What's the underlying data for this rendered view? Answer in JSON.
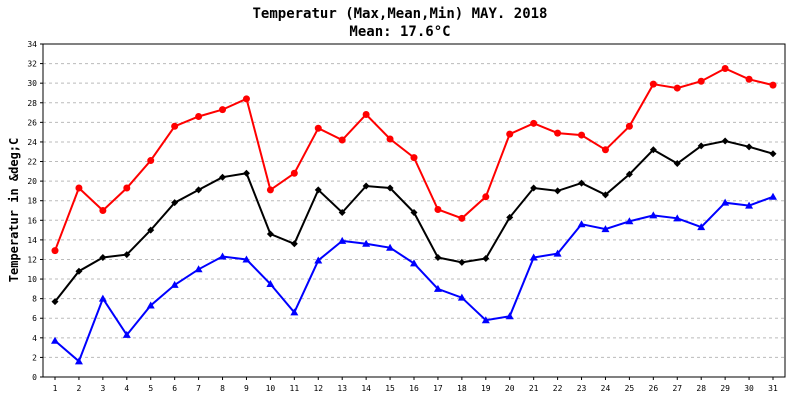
{
  "chart_data": {
    "type": "line",
    "title": "Temperatur (Max,Mean,Min) MAY. 2018",
    "subtitle": "Mean: 17.6°C",
    "xlabel": "",
    "ylabel": "Temperatur in &deg;C",
    "x": [
      1,
      2,
      3,
      4,
      5,
      6,
      7,
      8,
      9,
      10,
      11,
      12,
      13,
      14,
      15,
      16,
      17,
      18,
      19,
      20,
      21,
      22,
      23,
      24,
      25,
      26,
      27,
      28,
      29,
      30,
      31
    ],
    "ylim": [
      0,
      34
    ],
    "yticks": [
      0,
      2,
      4,
      6,
      8,
      10,
      12,
      14,
      16,
      18,
      20,
      22,
      24,
      26,
      28,
      30,
      32,
      34
    ],
    "grid": true,
    "series": [
      {
        "color": "#ff0000",
        "marker": "circle",
        "values": [
          12.9,
          19.3,
          17.0,
          19.3,
          22.1,
          25.6,
          26.6,
          27.3,
          28.4,
          19.1,
          20.8,
          25.4,
          24.2,
          26.8,
          24.3,
          22.4,
          17.1,
          16.2,
          18.4,
          24.8,
          25.9,
          24.9,
          24.7,
          23.2,
          25.6,
          29.9,
          29.5,
          30.2,
          31.5,
          30.4,
          29.8
        ]
      },
      {
        "color": "#000000",
        "marker": "diamond",
        "values": [
          7.7,
          10.8,
          12.2,
          12.5,
          15.0,
          17.8,
          19.1,
          20.4,
          20.8,
          14.6,
          13.6,
          19.1,
          16.8,
          19.5,
          19.3,
          16.8,
          12.2,
          11.7,
          12.1,
          16.3,
          19.3,
          19.0,
          19.8,
          18.6,
          20.7,
          23.2,
          21.8,
          23.6,
          24.1,
          23.5,
          22.8
        ]
      },
      {
        "color": "#0000ff",
        "marker": "triangle",
        "values": [
          3.7,
          1.6,
          8.0,
          4.3,
          7.3,
          9.4,
          11.0,
          12.3,
          12.0,
          9.5,
          6.6,
          11.9,
          13.9,
          13.6,
          13.2,
          11.6,
          9.0,
          8.1,
          5.8,
          6.2,
          12.2,
          12.6,
          15.6,
          15.1,
          15.9,
          16.5,
          16.2,
          15.3,
          17.8,
          17.5,
          18.4
        ]
      }
    ]
  }
}
